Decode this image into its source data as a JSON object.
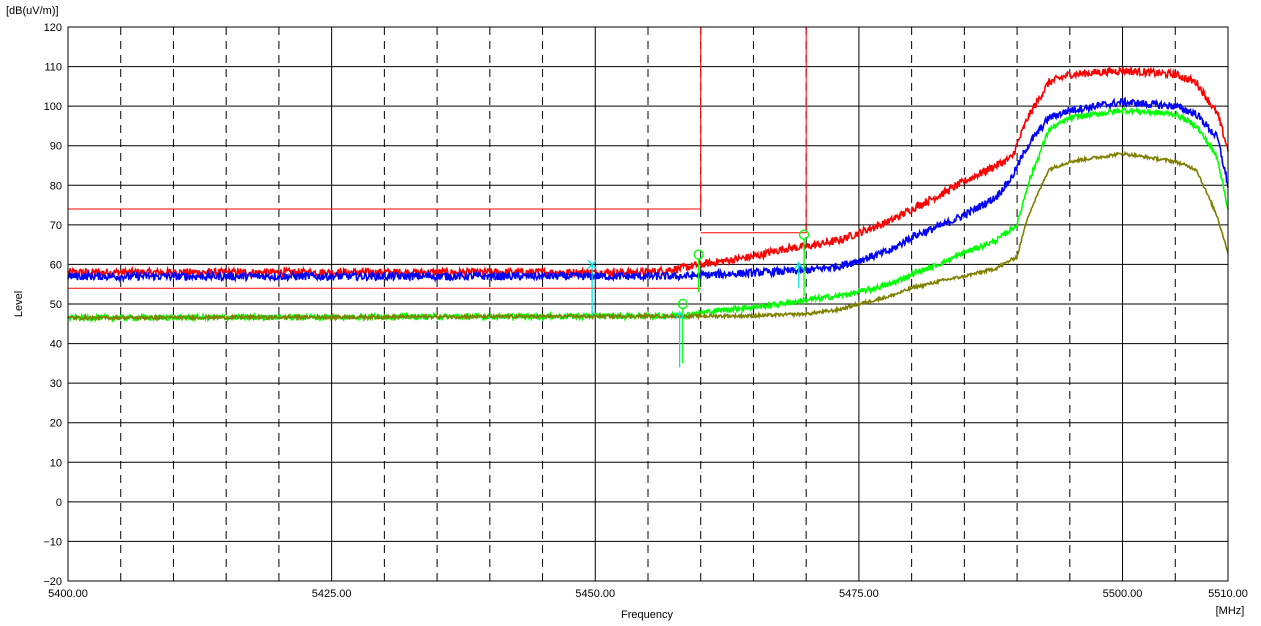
{
  "chart_data": {
    "type": "line",
    "unit_label": "[dB(uV/m)]",
    "xlabel": "Frequency",
    "x_unit_label": "[MHz]",
    "ylabel": "Level",
    "xlim": [
      5400,
      5510
    ],
    "ylim": [
      -20,
      120
    ],
    "x_tick_labels": [
      "5400.00",
      "5425.00",
      "5450.00",
      "5475.00",
      "5500.00",
      "5510.00"
    ],
    "x_ticks": [
      5400,
      5425,
      5450,
      5475,
      5500,
      5510
    ],
    "x_minor_ticks": [
      5405,
      5410,
      5415,
      5420,
      5430,
      5435,
      5440,
      5445,
      5455,
      5460,
      5465,
      5470,
      5480,
      5485,
      5490,
      5495,
      5505
    ],
    "y_ticks": [
      -20,
      -10,
      0,
      10,
      20,
      30,
      40,
      50,
      60,
      70,
      80,
      90,
      100,
      110,
      120
    ],
    "y_tick_labels": [
      "−20",
      "−10",
      "0",
      "10",
      "20",
      "30",
      "40",
      "50",
      "60",
      "70",
      "80",
      "90",
      "100",
      "110",
      "120"
    ],
    "grid": true,
    "series": [
      {
        "color": "#ff0000",
        "noise": 1.0,
        "x": [
          5400,
          5455,
          5458,
          5460,
          5465,
          5468,
          5470,
          5473,
          5475,
          5478,
          5480,
          5483,
          5485,
          5488,
          5489.5,
          5491,
          5493,
          5495,
          5500,
          5505,
          5507,
          5509,
          5510
        ],
        "y": [
          58,
          58,
          59,
          60,
          62,
          64,
          64.5,
          66,
          68,
          71,
          74,
          78,
          81,
          85,
          87,
          97,
          106,
          108,
          109,
          108,
          106,
          98,
          89
        ]
      },
      {
        "color": "#0000ff",
        "noise": 1.0,
        "x": [
          5400,
          5458,
          5462,
          5466,
          5470,
          5473,
          5475,
          5478,
          5480,
          5483,
          5485,
          5488,
          5489.5,
          5491,
          5493,
          5495,
          5500,
          5505,
          5507,
          5509,
          5510
        ],
        "y": [
          57,
          57,
          57.5,
          58,
          58.5,
          59.5,
          61,
          63.5,
          67,
          70,
          72.5,
          77,
          82,
          90,
          97,
          99,
          101,
          100,
          98,
          92,
          80
        ]
      },
      {
        "color": "#00ff00",
        "noise": 0.7,
        "x": [
          5400,
          5458,
          5462,
          5466,
          5470,
          5473,
          5475,
          5478,
          5480,
          5483,
          5485,
          5488,
          5490,
          5491,
          5493,
          5495,
          5500,
          5505,
          5507,
          5509,
          5510
        ],
        "y": [
          46.5,
          47,
          48.5,
          49.5,
          51,
          52,
          53,
          55,
          57.5,
          60.5,
          63,
          66,
          70,
          80,
          94,
          97,
          99,
          98,
          95,
          87,
          74
        ]
      },
      {
        "color": "#808000",
        "noise": 0.4,
        "x": [
          5400,
          5465,
          5470,
          5473,
          5475,
          5478,
          5480,
          5483,
          5485,
          5488,
          5490,
          5491,
          5493,
          5495,
          5500,
          5505,
          5507,
          5509,
          5510
        ],
        "y": [
          46.5,
          47,
          47.5,
          48.5,
          50,
          52,
          54,
          56,
          57,
          59,
          62,
          72,
          84,
          86,
          88,
          86,
          84,
          72,
          63
        ]
      }
    ],
    "limit_lines": [
      {
        "color": "#ff0000",
        "points": [
          [
            5400,
            74
          ],
          [
            5460,
            74
          ],
          [
            5460,
            120
          ]
        ]
      },
      {
        "color": "#ff0000",
        "points": [
          [
            5400,
            54
          ],
          [
            5460,
            54
          ]
        ]
      },
      {
        "color": "#ff0000",
        "points": [
          [
            5460,
            68
          ],
          [
            5470,
            68
          ],
          [
            5470,
            120
          ]
        ]
      }
    ],
    "markers": [
      {
        "color": "#00e5e5",
        "shape": "x",
        "x": 5449.7,
        "y": 60,
        "stem_to": 47
      },
      {
        "color": "#00ff00",
        "shape": "circle",
        "x": 5459.8,
        "y": 61.5,
        "stem_to": 53
      },
      {
        "color": "#00ff00",
        "shape": "circle",
        "x": 5469.8,
        "y": 66.5,
        "stem_to": 52
      },
      {
        "color": "#00e5e5",
        "shape": "arrow",
        "x": 5469.3,
        "y": 60,
        "stem_to": 54
      },
      {
        "color": "#00ff00",
        "shape": "circle",
        "x": 5458.3,
        "y": 49,
        "stem_to": 35
      },
      {
        "color": "#00e5e5",
        "shape": "arrow",
        "x": 5458.0,
        "y": 47.5,
        "stem_to": 34
      }
    ]
  }
}
